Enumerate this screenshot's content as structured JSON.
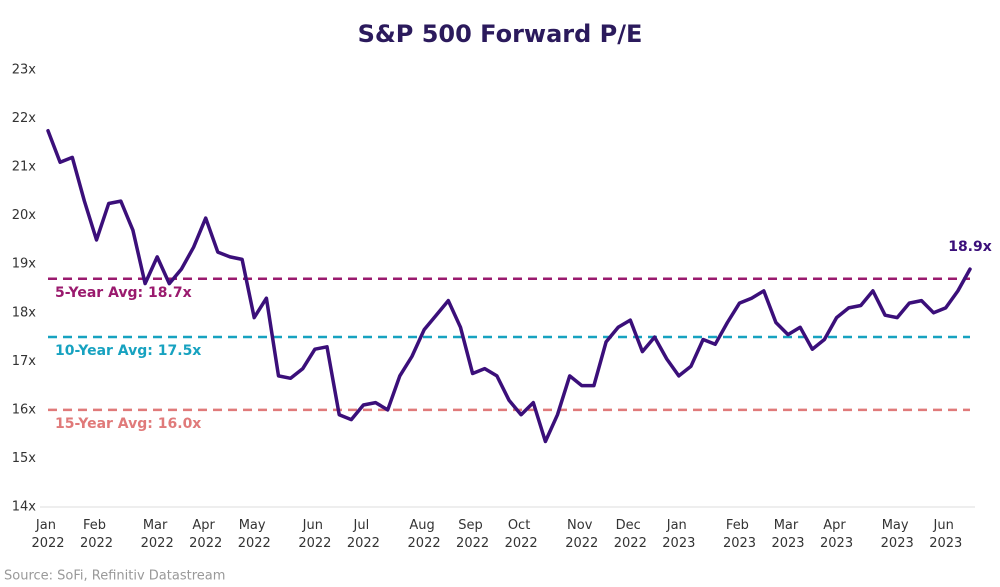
{
  "chart_data": {
    "type": "line",
    "title": "S&P 500 Forward P/E",
    "source": "Source: SoFi, Refinitiv Datastream",
    "categories": [
      "Jan 2022",
      null,
      null,
      null,
      "Feb 2022",
      null,
      null,
      null,
      null,
      "Mar 2022",
      null,
      null,
      null,
      "Apr 2022",
      null,
      null,
      null,
      "May 2022",
      null,
      null,
      null,
      null,
      "Jun 2022",
      null,
      null,
      null,
      "Jul 2022",
      null,
      null,
      null,
      null,
      "Aug 2022",
      null,
      null,
      null,
      "Sep 2022",
      null,
      null,
      null,
      "Oct 2022",
      null,
      null,
      null,
      null,
      "Nov 2022",
      null,
      null,
      null,
      "Dec 2022",
      null,
      null,
      null,
      "Jan 2023",
      null,
      null,
      null,
      null,
      "Feb 2023",
      null,
      null,
      null,
      "Mar 2023",
      null,
      null,
      null,
      "Apr 2023",
      null,
      null,
      null,
      null,
      "May 2023",
      null,
      null,
      null,
      "Jun 2023",
      null,
      null
    ],
    "series": [
      {
        "name": "S&P 500 Forward P/E",
        "color": "#3b0f7a",
        "values": [
          21.75,
          21.1,
          21.2,
          20.3,
          19.5,
          20.25,
          20.3,
          19.7,
          18.6,
          19.15,
          18.6,
          18.9,
          19.35,
          19.95,
          19.25,
          19.15,
          19.1,
          17.9,
          18.3,
          16.7,
          16.65,
          16.85,
          17.25,
          17.3,
          15.9,
          15.8,
          16.1,
          16.15,
          16.0,
          16.7,
          17.1,
          17.65,
          17.95,
          18.25,
          17.7,
          16.75,
          16.85,
          16.7,
          16.2,
          15.9,
          16.15,
          15.35,
          15.9,
          16.7,
          16.5,
          16.5,
          17.4,
          17.7,
          17.85,
          17.2,
          17.5,
          17.05,
          16.7,
          16.9,
          17.45,
          17.35,
          17.8,
          18.2,
          18.3,
          18.45,
          17.8,
          17.55,
          17.7,
          17.25,
          17.45,
          17.9,
          18.1,
          18.15,
          18.45,
          17.95,
          17.9,
          18.2,
          18.25,
          18.0,
          18.1,
          18.45,
          18.9
        ],
        "value_labels": [
          null,
          null,
          null,
          null,
          null,
          null,
          null,
          null,
          null,
          null,
          null,
          null,
          null,
          null,
          null,
          null,
          null,
          null,
          null,
          null,
          null,
          null,
          null,
          null,
          null,
          null,
          null,
          null,
          null,
          null,
          null,
          null,
          null,
          null,
          null,
          null,
          null,
          null,
          null,
          null,
          null,
          null,
          null,
          null,
          null,
          null,
          null,
          null,
          null,
          null,
          null,
          null,
          null,
          null,
          null,
          null,
          null,
          null,
          null,
          null,
          null,
          null,
          null,
          null,
          null,
          null,
          null,
          null,
          null,
          null,
          null,
          null,
          null,
          null,
          null,
          null,
          "18.9x"
        ]
      }
    ],
    "reference_lines": [
      {
        "label": "5-Year Avg: 18.7x",
        "value": 18.7,
        "color": "#9a1a6e"
      },
      {
        "label": "10-Year Avg: 17.5x",
        "value": 17.5,
        "color": "#17a2c0"
      },
      {
        "label": "15-Year Avg: 16.0x",
        "value": 16.0,
        "color": "#e07a7a"
      }
    ],
    "ylim": [
      14,
      23
    ],
    "yticks": [
      {
        "value": 14,
        "label": "14x"
      },
      {
        "value": 15,
        "label": "15x"
      },
      {
        "value": 16,
        "label": "16x"
      },
      {
        "value": 17,
        "label": "17x"
      },
      {
        "value": 18,
        "label": "18x"
      },
      {
        "value": 19,
        "label": "19x"
      },
      {
        "value": 20,
        "label": "20x"
      },
      {
        "value": 21,
        "label": "21x"
      },
      {
        "value": 22,
        "label": "22x"
      },
      {
        "value": 23,
        "label": "23x"
      }
    ],
    "grid": false
  }
}
